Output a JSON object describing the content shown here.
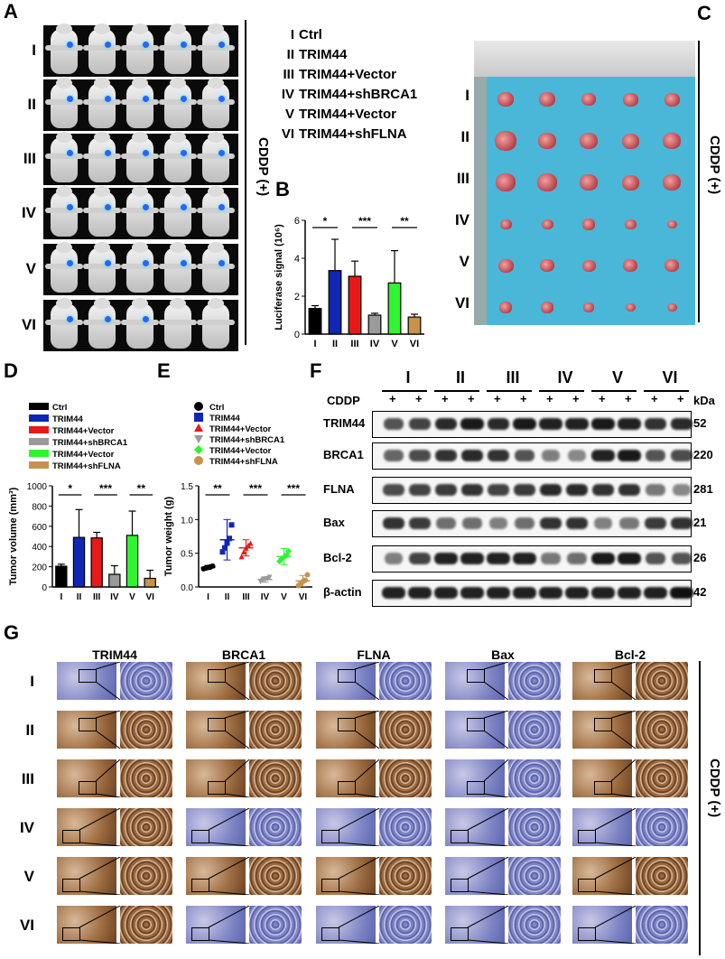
{
  "panels": {
    "A": "A",
    "B": "B",
    "C": "C",
    "D": "D",
    "E": "E",
    "F": "F",
    "G": "G"
  },
  "groups": [
    "I",
    "II",
    "III",
    "IV",
    "V",
    "VI"
  ],
  "legend_top": [
    {
      "num": "I",
      "name": "Ctrl"
    },
    {
      "num": "II",
      "name": "TRIM44"
    },
    {
      "num": "III",
      "name": "TRIM44+Vector"
    },
    {
      "num": "IV",
      "name": "TRIM44+shBRCA1"
    },
    {
      "num": "V",
      "name": "TRIM44+Vector"
    },
    {
      "num": "VI",
      "name": "TRIM44+shFLNA"
    }
  ],
  "cddp_side": "CDDP (+)",
  "colors": {
    "I": "#000000",
    "II": "#1126b4",
    "III": "#e8191a",
    "IV": "#9a9a9a",
    "V": "#2ef52e",
    "VI": "#c8924d"
  },
  "chart_data": [
    {
      "type": "bar",
      "panel": "B",
      "ylabel": "Luciferase signal (10⁶)",
      "ylim": [
        0,
        6
      ],
      "yticks": [
        "0",
        "2",
        "4",
        "6"
      ],
      "categories": [
        "I",
        "II",
        "III",
        "IV",
        "V",
        "VI"
      ],
      "values": [
        1.35,
        3.35,
        3.05,
        1.0,
        2.7,
        0.9
      ],
      "errors": [
        0.15,
        1.65,
        0.8,
        0.1,
        1.7,
        0.15
      ],
      "significance": [
        {
          "from": "I",
          "to": "II",
          "label": "*"
        },
        {
          "from": "III",
          "to": "IV",
          "label": "***"
        },
        {
          "from": "V",
          "to": "VI",
          "label": "**"
        }
      ]
    },
    {
      "type": "bar",
      "panel": "D",
      "ylabel": "Tumor volume (mm³)",
      "ylim": [
        0,
        1000
      ],
      "yticks": [
        "0",
        "200",
        "400",
        "600",
        "800",
        "1000"
      ],
      "categories": [
        "I",
        "II",
        "III",
        "IV",
        "V",
        "VI"
      ],
      "values": [
        205,
        490,
        485,
        125,
        510,
        85
      ],
      "errors": [
        20,
        275,
        55,
        85,
        240,
        80
      ],
      "legend": [
        "Ctrl",
        "TRIM44",
        "TRIM44+Vector",
        "TRIM44+shBRCA1",
        "TRIM44+Vector",
        "TRIM44+shFLNA"
      ],
      "significance": [
        {
          "from": "I",
          "to": "II",
          "label": "*"
        },
        {
          "from": "III",
          "to": "IV",
          "label": "***"
        },
        {
          "from": "V",
          "to": "VI",
          "label": "**"
        }
      ]
    },
    {
      "type": "scatter",
      "panel": "E",
      "ylabel": "Tumor weight (g)",
      "ylim": [
        0,
        1.5
      ],
      "yticks": [
        "0.0",
        "0.5",
        "1.0",
        "1.5"
      ],
      "categories": [
        "I",
        "II",
        "III",
        "IV",
        "V",
        "VI"
      ],
      "means": [
        0.29,
        0.7,
        0.58,
        0.11,
        0.45,
        0.09
      ],
      "errors": [
        0.03,
        0.3,
        0.12,
        0.04,
        0.12,
        0.08
      ],
      "points": [
        [
          0.27,
          0.28,
          0.29,
          0.3,
          0.31
        ],
        [
          0.52,
          0.58,
          0.65,
          0.72,
          0.92
        ],
        [
          0.45,
          0.52,
          0.58,
          0.62,
          0.65
        ],
        [
          0.08,
          0.1,
          0.11,
          0.12,
          0.14
        ],
        [
          0.38,
          0.42,
          0.44,
          0.47,
          0.53
        ],
        [
          0.02,
          0.05,
          0.08,
          0.1,
          0.18
        ]
      ],
      "legend": [
        "Ctrl",
        "TRIM44",
        "TRIM44+Vector",
        "TRIM44+shBRCA1",
        "TRIM44+Vector",
        "TRIM44+shFLNA"
      ],
      "significance": [
        {
          "from": "I",
          "to": "II",
          "label": "**"
        },
        {
          "from": "III",
          "to": "IV",
          "label": "***"
        },
        {
          "from": "V",
          "to": "VI",
          "label": "***"
        }
      ]
    }
  ],
  "blot": {
    "cddp": "CDDP",
    "plus": "+",
    "kda_label": "kDa",
    "rows": [
      {
        "label": "TRIM44",
        "kda": "52",
        "levels": [
          0.6,
          0.7,
          0.85,
          0.95,
          0.85,
          0.95,
          0.9,
          0.9,
          0.95,
          0.9,
          0.8,
          0.85
        ]
      },
      {
        "label": "BRCA1",
        "kda": "220",
        "levels": [
          0.5,
          0.65,
          0.8,
          0.85,
          0.8,
          0.6,
          0.35,
          0.3,
          0.9,
          0.95,
          0.6,
          0.65
        ]
      },
      {
        "label": "FLNA",
        "kda": "281",
        "levels": [
          0.65,
          0.7,
          0.75,
          0.8,
          0.7,
          0.75,
          0.85,
          0.85,
          0.8,
          0.8,
          0.4,
          0.3
        ]
      },
      {
        "label": "Bax",
        "kda": "21",
        "levels": [
          0.8,
          0.75,
          0.45,
          0.45,
          0.35,
          0.45,
          0.8,
          0.8,
          0.35,
          0.4,
          0.75,
          0.8
        ]
      },
      {
        "label": "Bcl-2",
        "kda": "26",
        "levels": [
          0.35,
          0.7,
          0.9,
          0.9,
          0.9,
          0.9,
          0.4,
          0.45,
          0.95,
          0.95,
          0.6,
          0.6
        ]
      },
      {
        "label": "β-actin",
        "kda": "42",
        "levels": [
          0.9,
          0.9,
          0.9,
          0.9,
          0.9,
          0.9,
          0.9,
          0.9,
          0.9,
          0.9,
          0.9,
          1.0
        ]
      }
    ]
  },
  "ihc": {
    "markers": [
      "TRIM44",
      "BRCA1",
      "FLNA",
      "Bax",
      "Bcl-2"
    ],
    "stain": [
      [
        "blue",
        "brown",
        "blue",
        "blue",
        "brown"
      ],
      [
        "brown",
        "brown",
        "brown",
        "blue",
        "brown"
      ],
      [
        "brown",
        "brown",
        "brown",
        "blue",
        "brown"
      ],
      [
        "brown",
        "blue",
        "blue",
        "blue",
        "blue"
      ],
      [
        "brown",
        "brown",
        "brown",
        "blue",
        "brown"
      ],
      [
        "brown",
        "blue",
        "blue",
        "blue",
        "blue"
      ]
    ]
  }
}
